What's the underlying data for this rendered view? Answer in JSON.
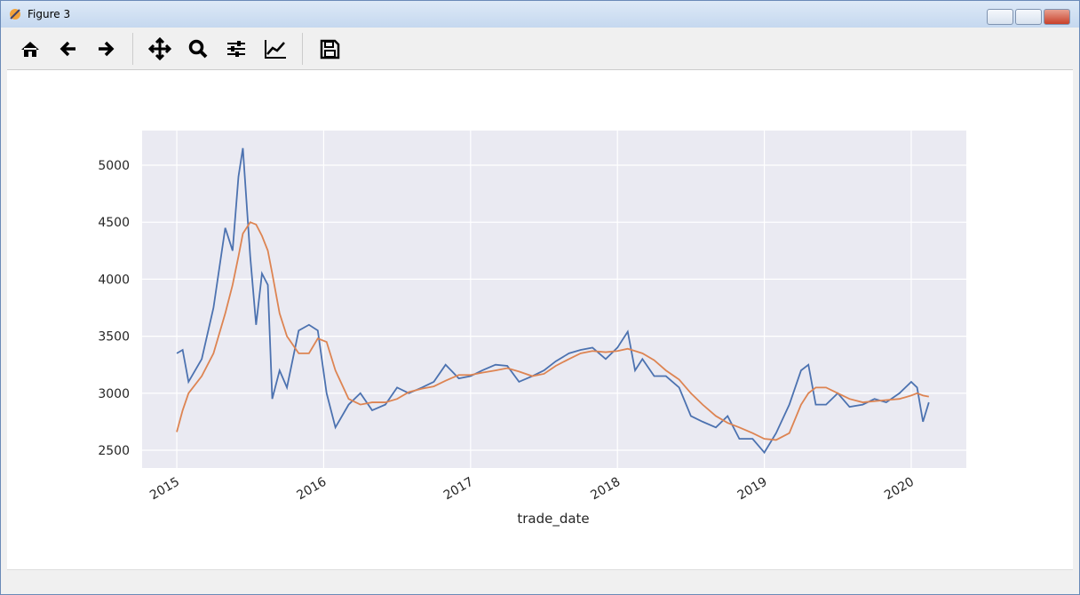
{
  "window": {
    "title": "Figure 3"
  },
  "chart_data": {
    "type": "line",
    "xlabel": "trade_date",
    "x": [
      2015.0,
      2015.04,
      2015.08,
      2015.17,
      2015.25,
      2015.33,
      2015.38,
      2015.42,
      2015.45,
      2015.5,
      2015.54,
      2015.58,
      2015.62,
      2015.65,
      2015.7,
      2015.75,
      2015.83,
      2015.9,
      2015.96,
      2016.02,
      2016.08,
      2016.17,
      2016.25,
      2016.33,
      2016.42,
      2016.5,
      2016.58,
      2016.67,
      2016.75,
      2016.83,
      2016.92,
      2017.0,
      2017.08,
      2017.17,
      2017.25,
      2017.33,
      2017.42,
      2017.5,
      2017.58,
      2017.67,
      2017.75,
      2017.83,
      2017.92,
      2018.0,
      2018.07,
      2018.12,
      2018.17,
      2018.25,
      2018.33,
      2018.42,
      2018.5,
      2018.58,
      2018.67,
      2018.75,
      2018.83,
      2018.92,
      2019.0,
      2019.08,
      2019.17,
      2019.25,
      2019.3,
      2019.35,
      2019.42,
      2019.5,
      2019.58,
      2019.67,
      2019.75,
      2019.83,
      2019.92,
      2020.0,
      2020.04,
      2020.08,
      2020.12
    ],
    "series": [
      {
        "color": "#4c72b0",
        "values": [
          3350,
          3380,
          3100,
          3300,
          3750,
          4450,
          4250,
          4900,
          5150,
          4200,
          3600,
          4050,
          3950,
          2950,
          3200,
          3050,
          3550,
          3600,
          3550,
          3000,
          2700,
          2900,
          3000,
          2850,
          2900,
          3050,
          3000,
          3050,
          3100,
          3250,
          3130,
          3150,
          3200,
          3250,
          3240,
          3100,
          3150,
          3200,
          3280,
          3350,
          3380,
          3400,
          3300,
          3400,
          3540,
          3200,
          3300,
          3150,
          3150,
          3050,
          2800,
          2750,
          2700,
          2800,
          2600,
          2600,
          2480,
          2650,
          2900,
          3200,
          3250,
          2900,
          2900,
          3000,
          2880,
          2900,
          2950,
          2920,
          3000,
          3100,
          3050,
          2750,
          2920
        ]
      },
      {
        "color": "#dd8452",
        "values": [
          2660,
          2850,
          3000,
          3150,
          3350,
          3700,
          3950,
          4200,
          4400,
          4500,
          4480,
          4380,
          4250,
          4050,
          3700,
          3500,
          3350,
          3350,
          3480,
          3450,
          3200,
          2950,
          2900,
          2920,
          2920,
          2950,
          3010,
          3040,
          3060,
          3110,
          3160,
          3160,
          3180,
          3200,
          3220,
          3190,
          3150,
          3170,
          3240,
          3300,
          3350,
          3370,
          3360,
          3370,
          3390,
          3370,
          3350,
          3290,
          3200,
          3120,
          3000,
          2900,
          2800,
          2740,
          2700,
          2650,
          2600,
          2590,
          2650,
          2900,
          3000,
          3050,
          3050,
          3000,
          2950,
          2920,
          2930,
          2940,
          2950,
          2980,
          3000,
          2980,
          2970
        ]
      }
    ],
    "xlim": [
      2014.764,
      2020.375
    ],
    "xticks": [
      2015,
      2016,
      2017,
      2018,
      2019,
      2020
    ],
    "ylim": [
      2344,
      5304
    ],
    "yticks": [
      2500,
      3000,
      3500,
      4000,
      4500,
      5000
    ],
    "grid": true,
    "background": "#eaeaf2"
  }
}
